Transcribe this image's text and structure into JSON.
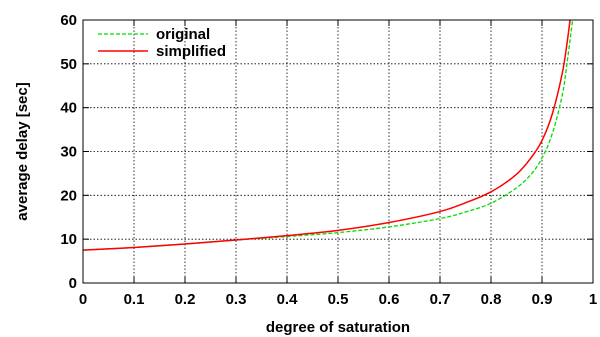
{
  "chart_data": {
    "type": "line",
    "xlabel": "degree of saturation",
    "ylabel": "average delay [sec]",
    "xlim": [
      0,
      1
    ],
    "ylim": [
      0,
      60
    ],
    "xticks": [
      {
        "value": 0,
        "label": "0"
      },
      {
        "value": 0.1,
        "label": "0.1"
      },
      {
        "value": 0.2,
        "label": "0.2"
      },
      {
        "value": 0.3,
        "label": "0.3"
      },
      {
        "value": 0.4,
        "label": "0.4"
      },
      {
        "value": 0.5,
        "label": "0.5"
      },
      {
        "value": 0.6,
        "label": "0.6"
      },
      {
        "value": 0.7,
        "label": "0.7"
      },
      {
        "value": 0.8,
        "label": "0.8"
      },
      {
        "value": 0.9,
        "label": "0.9"
      },
      {
        "value": 1,
        "label": "1"
      }
    ],
    "yticks": [
      {
        "value": 0,
        "label": "0"
      },
      {
        "value": 10,
        "label": "10"
      },
      {
        "value": 20,
        "label": "20"
      },
      {
        "value": 30,
        "label": "30"
      },
      {
        "value": 40,
        "label": "40"
      },
      {
        "value": 50,
        "label": "50"
      },
      {
        "value": 60,
        "label": "60"
      }
    ],
    "grid": true,
    "legend_position": "top-left",
    "series": [
      {
        "name": "original",
        "color": "#00dd00",
        "style": "dashed",
        "x": [
          0,
          0.1,
          0.2,
          0.3,
          0.4,
          0.5,
          0.6,
          0.7,
          0.75,
          0.8,
          0.85,
          0.88,
          0.9,
          0.92,
          0.94,
          0.95,
          0.96
        ],
        "y": [
          7.5,
          8.1,
          8.9,
          9.8,
          10.6,
          11.5,
          12.8,
          14.7,
          16.2,
          18.2,
          21.7,
          25.0,
          28.5,
          34.0,
          43.0,
          51.0,
          60.0
        ]
      },
      {
        "name": "simplified",
        "color": "#ff0000",
        "style": "solid",
        "x": [
          0,
          0.1,
          0.2,
          0.3,
          0.4,
          0.5,
          0.6,
          0.7,
          0.75,
          0.8,
          0.85,
          0.88,
          0.9,
          0.92,
          0.94,
          0.95,
          0.955
        ],
        "y": [
          7.5,
          8.1,
          8.9,
          9.8,
          10.8,
          12.0,
          13.8,
          16.3,
          18.3,
          20.8,
          24.8,
          28.8,
          32.5,
          38.5,
          48.0,
          55.5,
          60.0
        ]
      }
    ]
  }
}
